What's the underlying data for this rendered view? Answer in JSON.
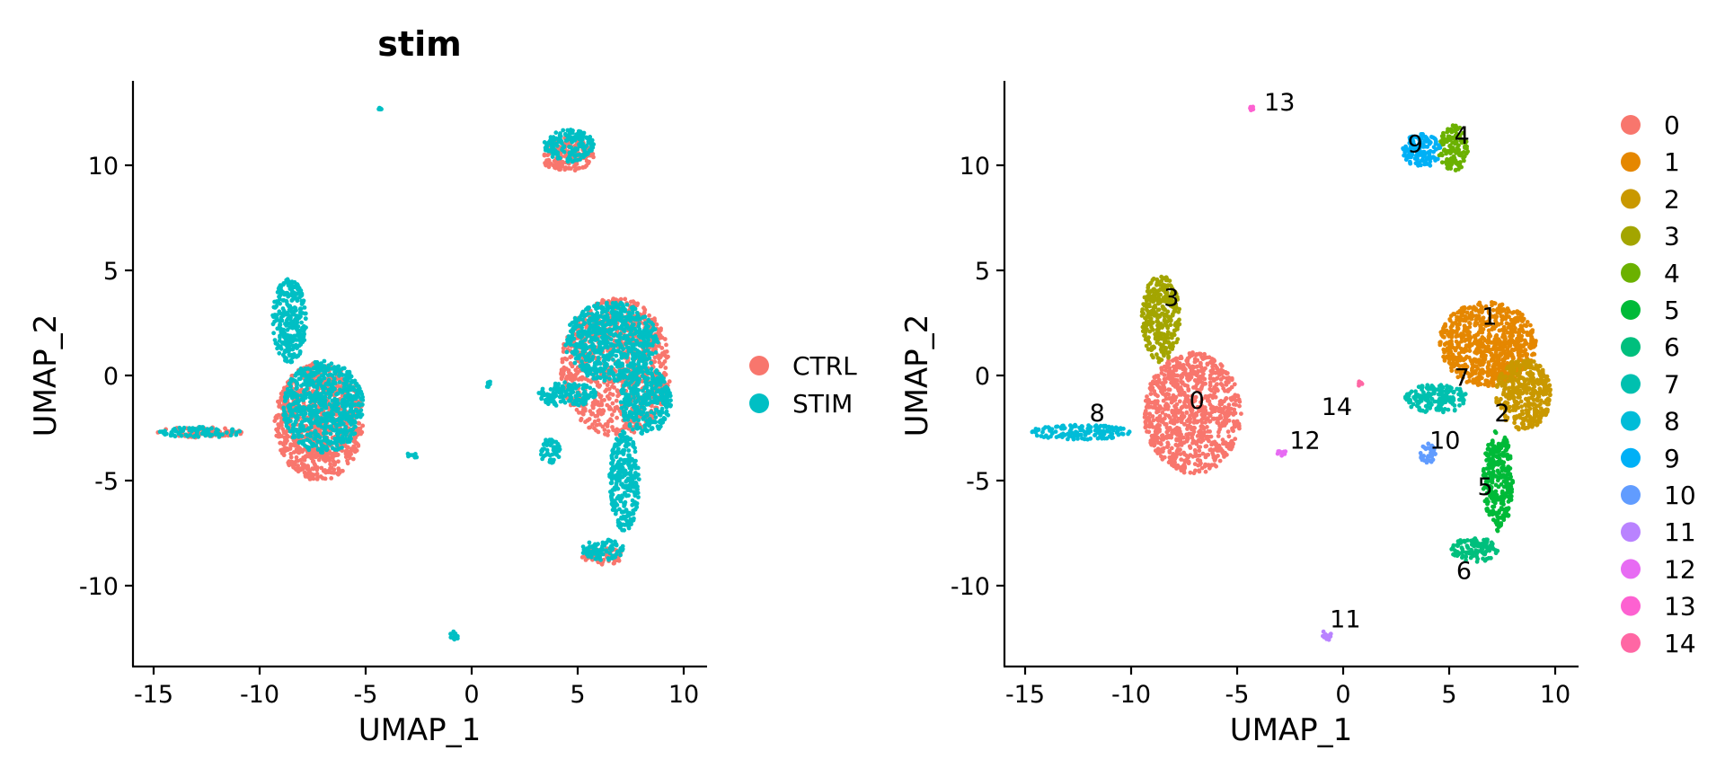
{
  "chart_data": [
    {
      "type": "scatter",
      "title": "stim",
      "xlabel": "UMAP_1",
      "ylabel": "UMAP_2",
      "xlim": [
        -16,
        11
      ],
      "ylim": [
        -14,
        14
      ],
      "xticks": [
        -15,
        -10,
        -5,
        0,
        5,
        10
      ],
      "xtick_labels": [
        "-15",
        "-10",
        "-5",
        "0",
        "5",
        "10"
      ],
      "yticks": [
        -10,
        -5,
        0,
        5,
        10
      ],
      "ytick_labels": [
        "-10",
        "-5",
        "0",
        "5",
        "10"
      ],
      "legend": {
        "position": "right",
        "entries": [
          {
            "label": "CTRL",
            "color": "#F8766D"
          },
          {
            "label": "STIM",
            "color": "#00BFC4"
          }
        ]
      },
      "series": [
        {
          "name": "CTRL",
          "color": "#F8766D",
          "regions": [
            {
              "cx": -7.2,
              "cy": -2.2,
              "rx": 2.1,
              "ry": 2.8
            },
            {
              "cx": 6.8,
              "cy": 0.4,
              "rx": 2.6,
              "ry": 3.3
            },
            {
              "cx": 6.2,
              "cy": -8.6,
              "rx": 1.0,
              "ry": 0.4
            },
            {
              "cx": 4.5,
              "cy": 10.5,
              "rx": 1.3,
              "ry": 0.8
            },
            {
              "cx": -12.8,
              "cy": -2.7,
              "rx": 2.0,
              "ry": 0.25
            }
          ]
        },
        {
          "name": "STIM",
          "color": "#00BFC4",
          "regions": [
            {
              "cx": -7.0,
              "cy": -1.5,
              "rx": 1.9,
              "ry": 2.2
            },
            {
              "cx": -8.6,
              "cy": 2.6,
              "rx": 0.8,
              "ry": 2.0
            },
            {
              "cx": -12.8,
              "cy": -2.7,
              "rx": 2.0,
              "ry": 0.25
            },
            {
              "cx": 6.6,
              "cy": 1.6,
              "rx": 2.2,
              "ry": 1.9
            },
            {
              "cx": 8.2,
              "cy": -1.2,
              "rx": 1.2,
              "ry": 1.6
            },
            {
              "cx": 7.2,
              "cy": -5.0,
              "rx": 0.7,
              "ry": 2.4
            },
            {
              "cx": 6.2,
              "cy": -8.3,
              "rx": 1.0,
              "ry": 0.5
            },
            {
              "cx": 4.5,
              "cy": -0.9,
              "rx": 1.4,
              "ry": 0.6
            },
            {
              "cx": 3.7,
              "cy": -3.6,
              "rx": 0.5,
              "ry": 0.6
            },
            {
              "cx": 4.6,
              "cy": 10.9,
              "rx": 1.2,
              "ry": 0.8
            },
            {
              "cx": -2.8,
              "cy": -3.8,
              "rx": 0.3,
              "ry": 0.15
            },
            {
              "cx": -0.8,
              "cy": -12.4,
              "rx": 0.25,
              "ry": 0.25
            },
            {
              "cx": -4.3,
              "cy": 12.7,
              "rx": 0.1,
              "ry": 0.1
            },
            {
              "cx": 0.8,
              "cy": -0.4,
              "rx": 0.15,
              "ry": 0.15
            }
          ]
        }
      ]
    },
    {
      "type": "scatter",
      "title": "",
      "xlabel": "UMAP_1",
      "ylabel": "UMAP_2",
      "xlim": [
        -16,
        11
      ],
      "ylim": [
        -14,
        14
      ],
      "xticks": [
        -15,
        -10,
        -5,
        0,
        5,
        10
      ],
      "xtick_labels": [
        "-15",
        "-10",
        "-5",
        "0",
        "5",
        "10"
      ],
      "yticks": [
        -10,
        -5,
        0,
        5,
        10
      ],
      "ytick_labels": [
        "-10",
        "-5",
        "0",
        "5",
        "10"
      ],
      "legend": {
        "position": "right",
        "entries": [
          {
            "label": "0",
            "color": "#F8766D"
          },
          {
            "label": "1",
            "color": "#E58700"
          },
          {
            "label": "2",
            "color": "#C99800"
          },
          {
            "label": "3",
            "color": "#A3A500"
          },
          {
            "label": "4",
            "color": "#6BB100"
          },
          {
            "label": "5",
            "color": "#00BA38"
          },
          {
            "label": "6",
            "color": "#00BF7D"
          },
          {
            "label": "7",
            "color": "#00C0AF"
          },
          {
            "label": "8",
            "color": "#00BCD8"
          },
          {
            "label": "9",
            "color": "#00B0F6"
          },
          {
            "label": "10",
            "color": "#619CFF"
          },
          {
            "label": "11",
            "color": "#B983FF"
          },
          {
            "label": "12",
            "color": "#E76BF3"
          },
          {
            "label": "13",
            "color": "#FD61D1"
          },
          {
            "label": "14",
            "color": "#FF67A4"
          }
        ]
      },
      "series": [
        {
          "name": "0",
          "color": "#F8766D",
          "label_at": [
            -6.9,
            -1.2
          ],
          "regions": [
            {
              "cx": -7.1,
              "cy": -1.8,
              "rx": 2.3,
              "ry": 2.9
            }
          ]
        },
        {
          "name": "1",
          "color": "#E58700",
          "label_at": [
            6.9,
            2.8
          ],
          "regions": [
            {
              "cx": 6.8,
              "cy": 1.5,
              "rx": 2.3,
              "ry": 2.0
            }
          ]
        },
        {
          "name": "2",
          "color": "#C99800",
          "label_at": [
            7.5,
            -1.8
          ],
          "regions": [
            {
              "cx": 8.5,
              "cy": -0.9,
              "rx": 1.3,
              "ry": 1.7
            }
          ]
        },
        {
          "name": "3",
          "color": "#A3A500",
          "label_at": [
            -8.1,
            3.7
          ],
          "regions": [
            {
              "cx": -8.6,
              "cy": 2.7,
              "rx": 0.9,
              "ry": 2.1
            }
          ]
        },
        {
          "name": "4",
          "color": "#6BB100",
          "label_at": [
            5.6,
            11.4
          ],
          "regions": [
            {
              "cx": 5.2,
              "cy": 10.8,
              "rx": 0.7,
              "ry": 1.1
            }
          ]
        },
        {
          "name": "5",
          "color": "#00BA38",
          "label_at": [
            6.7,
            -5.3
          ],
          "regions": [
            {
              "cx": 7.3,
              "cy": -5.0,
              "rx": 0.7,
              "ry": 2.4
            }
          ]
        },
        {
          "name": "6",
          "color": "#00BF7D",
          "label_at": [
            5.7,
            -9.3
          ],
          "regions": [
            {
              "cx": 6.2,
              "cy": -8.3,
              "rx": 1.1,
              "ry": 0.6
            }
          ]
        },
        {
          "name": "7",
          "color": "#00C0AF",
          "label_at": [
            5.6,
            -0.1
          ],
          "regions": [
            {
              "cx": 4.4,
              "cy": -1.1,
              "rx": 1.5,
              "ry": 0.7
            }
          ]
        },
        {
          "name": "8",
          "color": "#00BCD8",
          "label_at": [
            -11.6,
            -1.8
          ],
          "regions": [
            {
              "cx": -12.4,
              "cy": -2.7,
              "rx": 2.4,
              "ry": 0.35
            }
          ]
        },
        {
          "name": "9",
          "color": "#00B0F6",
          "label_at": [
            3.4,
            11.0
          ],
          "regions": [
            {
              "cx": 3.7,
              "cy": 10.7,
              "rx": 0.9,
              "ry": 0.8
            }
          ]
        },
        {
          "name": "10",
          "color": "#619CFF",
          "label_at": [
            4.8,
            -3.1
          ],
          "regions": [
            {
              "cx": 4.0,
              "cy": -3.7,
              "rx": 0.4,
              "ry": 0.5
            }
          ]
        },
        {
          "name": "11",
          "color": "#B983FF",
          "label_at": [
            0.1,
            -11.6
          ],
          "regions": [
            {
              "cx": -0.8,
              "cy": -12.4,
              "rx": 0.25,
              "ry": 0.25
            }
          ]
        },
        {
          "name": "12",
          "color": "#E76BF3",
          "label_at": [
            -1.8,
            -3.1
          ],
          "regions": [
            {
              "cx": -2.9,
              "cy": -3.7,
              "rx": 0.35,
              "ry": 0.15
            }
          ]
        },
        {
          "name": "13",
          "color": "#FD61D1",
          "label_at": [
            -3.0,
            13.0
          ],
          "regions": [
            {
              "cx": -4.3,
              "cy": 12.7,
              "rx": 0.1,
              "ry": 0.1
            }
          ]
        },
        {
          "name": "14",
          "color": "#FF67A4",
          "label_at": [
            -0.3,
            -1.5
          ],
          "regions": [
            {
              "cx": 0.8,
              "cy": -0.4,
              "rx": 0.12,
              "ry": 0.12
            }
          ]
        }
      ]
    }
  ]
}
